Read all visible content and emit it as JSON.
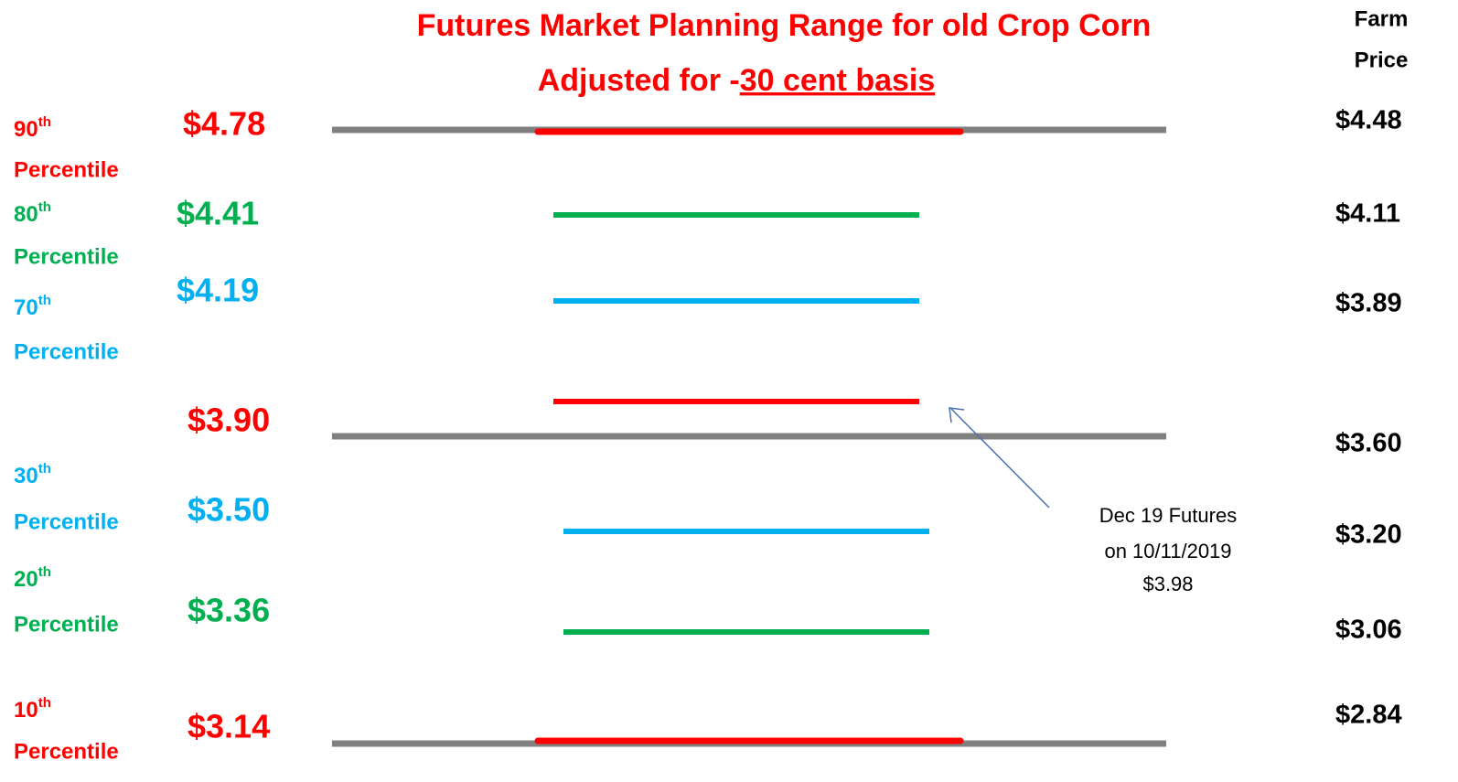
{
  "title": "Futures Market Planning Range for  old Crop Corn",
  "subtitle": {
    "prefix": "Adjusted for   -",
    "underlined": "30 cent basis"
  },
  "farm_price_header": [
    "Farm",
    "Price"
  ],
  "levels": [
    {
      "ordinal": "90",
      "suffix": "th",
      "label": "Percentile",
      "futures": "$4.78",
      "farm": "$4.48"
    },
    {
      "ordinal": "80",
      "suffix": "th",
      "label": "Percentile",
      "futures": "$4.41",
      "farm": "$4.11"
    },
    {
      "ordinal": "70",
      "suffix": "th",
      "label": "Percentile",
      "futures": "$4.19",
      "farm": "$3.89"
    },
    {
      "futures": "$3.90",
      "farm": "$3.60"
    },
    {
      "ordinal": "30",
      "suffix": "th",
      "label": "Percentile",
      "futures": "$3.50",
      "farm": "$3.20"
    },
    {
      "ordinal": "20",
      "suffix": "th",
      "label": "Percentile",
      "futures": "$3.36",
      "farm": "$3.06"
    },
    {
      "ordinal": "10",
      "suffix": "th",
      "label": "Percentile",
      "futures": "$3.14",
      "farm": "$2.84"
    }
  ],
  "annotation": [
    "Dec 19 Futures",
    "on 10/11/2019",
    "$3.98"
  ]
}
